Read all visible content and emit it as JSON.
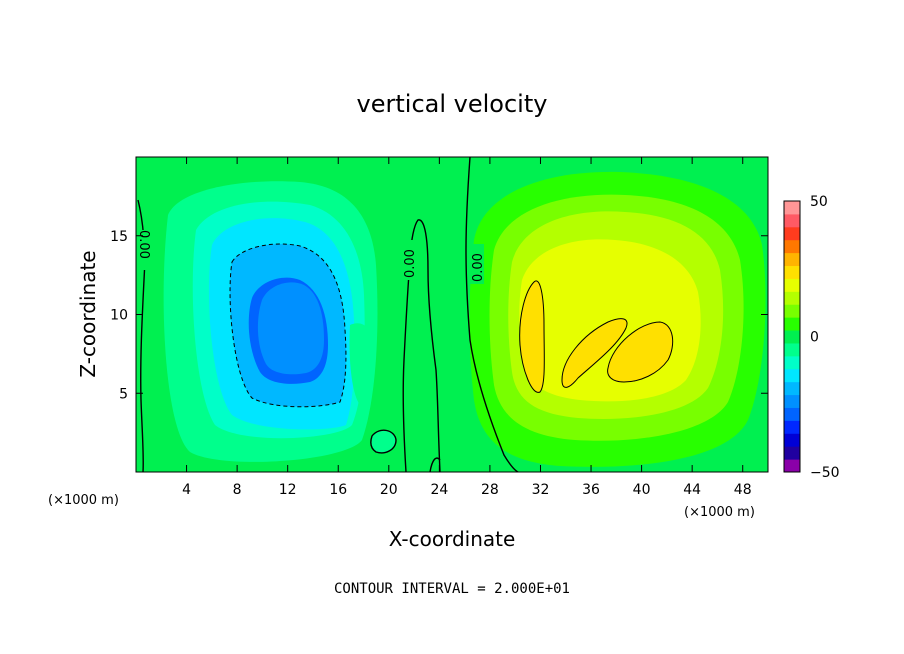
{
  "chart_data": {
    "type": "heatmap",
    "title": "vertical velocity",
    "xlabel": "X-coordinate",
    "ylabel": "Z-coordinate",
    "x_unit": "(×1000 m)",
    "xlim": [
      0,
      50
    ],
    "ylim": [
      0,
      20
    ],
    "x_ticks": [
      4,
      8,
      12,
      16,
      20,
      24,
      28,
      32,
      36,
      40,
      44,
      48
    ],
    "y_ticks": [
      5,
      10,
      15
    ],
    "colorbar": {
      "min": -50,
      "max": 50,
      "tick_labels": [
        "50",
        "0",
        "−50"
      ],
      "tick_values": [
        50,
        0,
        -50
      ],
      "levels": [
        -50,
        -45,
        -40,
        -35,
        -30,
        -25,
        -20,
        -15,
        -10,
        -5,
        0,
        5,
        10,
        15,
        20,
        25,
        30,
        35,
        40,
        45,
        50
      ],
      "colors": [
        "#8a00a8",
        "#2000a0",
        "#0000d6",
        "#0028ff",
        "#0064ff",
        "#0090ff",
        "#00b8ff",
        "#00e6ff",
        "#00ffc8",
        "#00ff8c",
        "#00f050",
        "#28ff00",
        "#78ff00",
        "#b4ff00",
        "#e6ff00",
        "#ffe000",
        "#ffb400",
        "#ff7800",
        "#ff3c1e",
        "#ff5a64",
        "#ff9696"
      ]
    },
    "contour_labels": [
      "0.00",
      "0.00",
      "0.00"
    ],
    "features": [
      {
        "kind": "downdraft",
        "x_center": 12,
        "z_center": 9.5,
        "min_value": -30
      },
      {
        "kind": "updraft",
        "x_center": 36,
        "z_center": 9,
        "max_value": 25
      }
    ],
    "footer": "CONTOUR INTERVAL = 2.000E+01"
  }
}
